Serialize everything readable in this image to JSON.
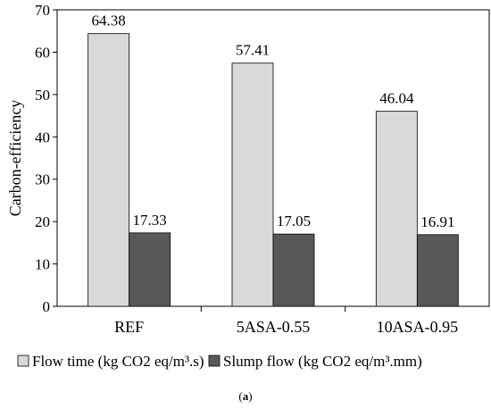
{
  "chart_data": {
    "type": "bar",
    "categories": [
      "REF",
      "5ASA-0.55",
      "10ASA-0.95"
    ],
    "series": [
      {
        "name": "Flow time (kg CO2 eq/m³.s)",
        "values": [
          64.38,
          57.41,
          46.04
        ],
        "labels": [
          "64.38",
          "57.41",
          "46.04"
        ],
        "color": "#d9d9d9"
      },
      {
        "name": "Slump flow (kg CO2 eq/m³.mm)",
        "values": [
          17.33,
          17.05,
          16.91
        ],
        "labels": [
          "17.33",
          "17.05",
          "16.91"
        ],
        "color": "#595959"
      }
    ],
    "ylabel": "Carbon-efficiency",
    "xlabel": "",
    "ylim": [
      0,
      70
    ],
    "yticks": [
      0,
      10,
      20,
      30,
      40,
      50,
      60,
      70
    ],
    "grid": false,
    "legend_position": "bottom"
  },
  "caption": {
    "open": "(",
    "letter": "a",
    "close": ")"
  }
}
